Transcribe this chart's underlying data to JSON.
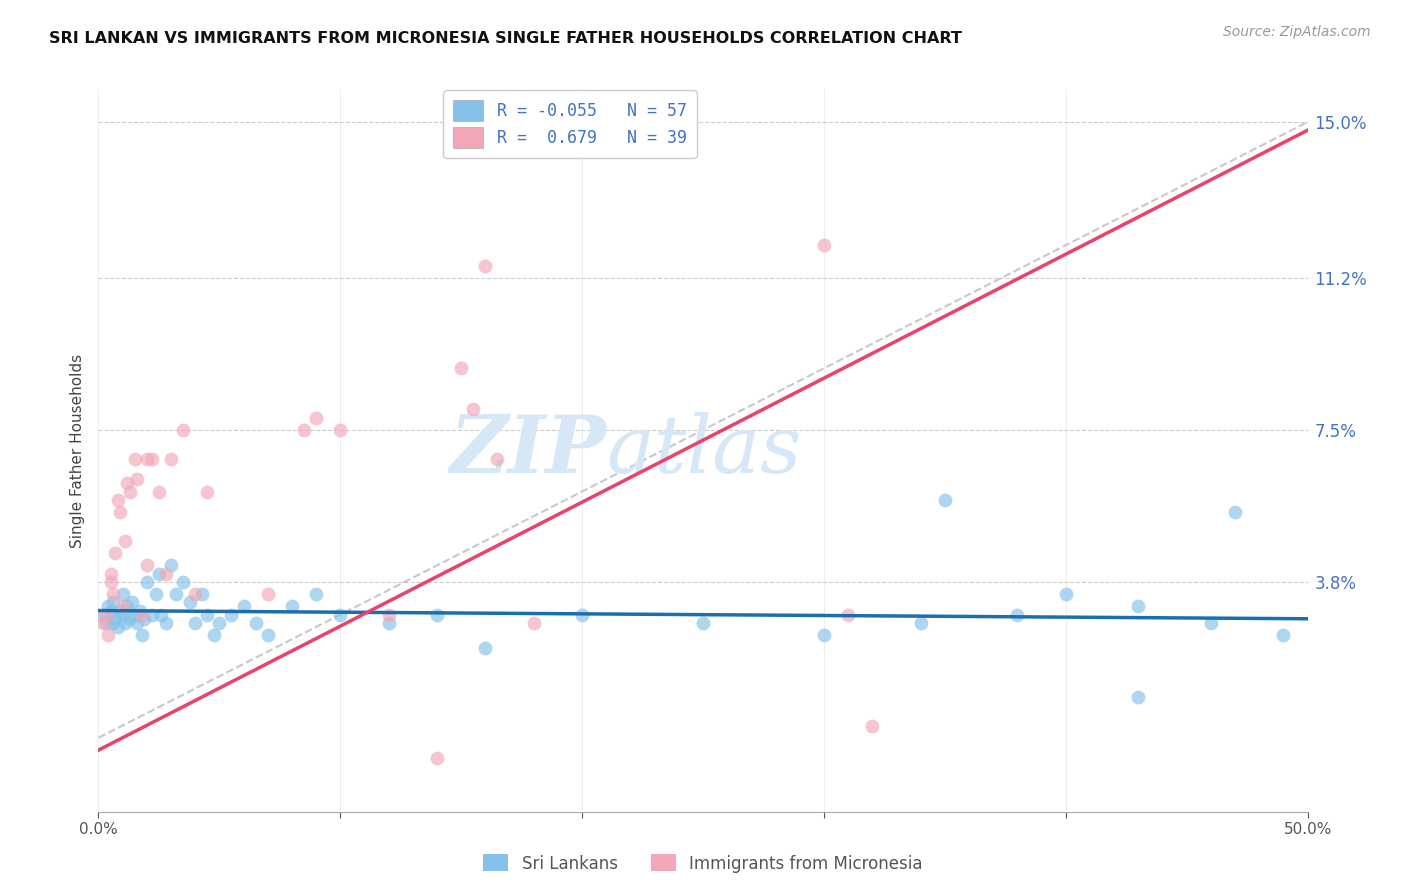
{
  "title": "SRI LANKAN VS IMMIGRANTS FROM MICRONESIA SINGLE FATHER HOUSEHOLDS CORRELATION CHART",
  "source_text": "Source: ZipAtlas.com",
  "ylabel": "Single Father Households",
  "xmin": 0.0,
  "xmax": 0.5,
  "ymin": -0.018,
  "ymax": 0.158,
  "yticks_right": [
    0.038,
    0.075,
    0.112,
    0.15
  ],
  "ytick_right_labels": [
    "3.8%",
    "7.5%",
    "11.2%",
    "15.0%"
  ],
  "xticks": [
    0.0,
    0.1,
    0.2,
    0.3,
    0.4,
    0.5
  ],
  "xtick_labels": [
    "0.0%",
    "",
    "",
    "",
    "",
    "50.0%"
  ],
  "grid_color": "#cccccc",
  "background_color": "#ffffff",
  "blue_color": "#85c1e9",
  "pink_color": "#f1a7b8",
  "trend_blue_color": "#1a6fad",
  "trend_pink_color": "#e8436a",
  "diag_color": "#bbbbbb",
  "R_blue": -0.055,
  "N_blue": 57,
  "R_pink": 0.679,
  "N_pink": 39,
  "legend_label_blue": "Sri Lankans",
  "legend_label_pink": "Immigrants from Micronesia",
  "watermark_line1": "ZIP",
  "watermark_line2": "atlas",
  "watermark_color": "#d6e8f8",
  "blue_trend_x0": 0.0,
  "blue_trend_y0": 0.031,
  "blue_trend_x1": 0.5,
  "blue_trend_y1": 0.029,
  "pink_trend_x0": 0.0,
  "pink_trend_y0": -0.003,
  "pink_trend_x1": 0.5,
  "pink_trend_y1": 0.148,
  "blue_scatter_x": [
    0.002,
    0.003,
    0.004,
    0.005,
    0.006,
    0.006,
    0.007,
    0.008,
    0.009,
    0.01,
    0.01,
    0.011,
    0.012,
    0.013,
    0.014,
    0.015,
    0.016,
    0.017,
    0.018,
    0.019,
    0.02,
    0.022,
    0.024,
    0.025,
    0.026,
    0.028,
    0.03,
    0.032,
    0.035,
    0.038,
    0.04,
    0.043,
    0.045,
    0.048,
    0.05,
    0.055,
    0.06,
    0.065,
    0.07,
    0.08,
    0.09,
    0.1,
    0.12,
    0.14,
    0.16,
    0.2,
    0.25,
    0.3,
    0.34,
    0.38,
    0.4,
    0.43,
    0.46,
    0.47,
    0.49,
    0.35,
    0.43
  ],
  "blue_scatter_y": [
    0.03,
    0.028,
    0.032,
    0.031,
    0.028,
    0.033,
    0.029,
    0.027,
    0.031,
    0.03,
    0.035,
    0.028,
    0.032,
    0.029,
    0.033,
    0.03,
    0.028,
    0.031,
    0.025,
    0.029,
    0.038,
    0.03,
    0.035,
    0.04,
    0.03,
    0.028,
    0.042,
    0.035,
    0.038,
    0.033,
    0.028,
    0.035,
    0.03,
    0.025,
    0.028,
    0.03,
    0.032,
    0.028,
    0.025,
    0.032,
    0.035,
    0.03,
    0.028,
    0.03,
    0.022,
    0.03,
    0.028,
    0.025,
    0.028,
    0.03,
    0.035,
    0.032,
    0.028,
    0.055,
    0.025,
    0.058,
    0.01
  ],
  "pink_scatter_x": [
    0.002,
    0.003,
    0.004,
    0.005,
    0.005,
    0.006,
    0.007,
    0.008,
    0.009,
    0.01,
    0.011,
    0.012,
    0.013,
    0.015,
    0.016,
    0.018,
    0.02,
    0.02,
    0.022,
    0.025,
    0.028,
    0.03,
    0.035,
    0.04,
    0.045,
    0.07,
    0.085,
    0.09,
    0.1,
    0.12,
    0.14,
    0.15,
    0.155,
    0.16,
    0.165,
    0.18,
    0.3,
    0.31,
    0.32
  ],
  "pink_scatter_y": [
    0.028,
    0.03,
    0.025,
    0.04,
    0.038,
    0.035,
    0.045,
    0.058,
    0.055,
    0.032,
    0.048,
    0.062,
    0.06,
    0.068,
    0.063,
    0.03,
    0.042,
    0.068,
    0.068,
    0.06,
    0.04,
    0.068,
    0.075,
    0.035,
    0.06,
    0.035,
    0.075,
    0.078,
    0.075,
    0.03,
    -0.005,
    0.09,
    0.08,
    0.115,
    0.068,
    0.028,
    0.12,
    0.03,
    0.003
  ]
}
